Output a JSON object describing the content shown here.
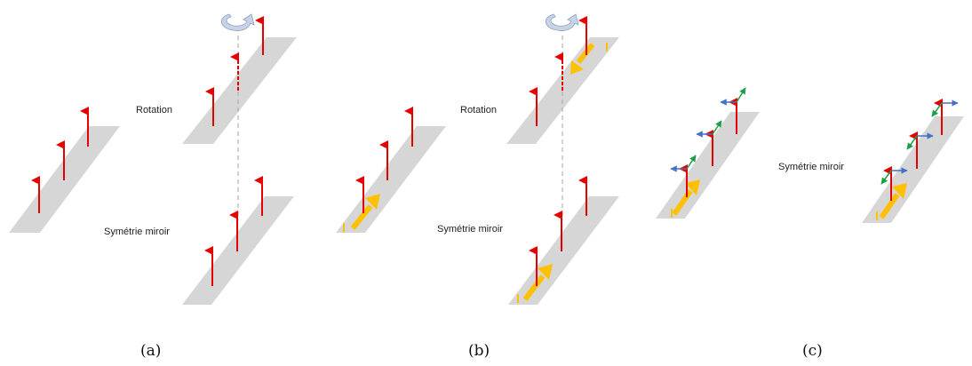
{
  "panels": [
    {
      "id": "a",
      "caption": "(a)",
      "labels": [
        "Rotation",
        "Symétrie miroir"
      ]
    },
    {
      "id": "b",
      "caption": "(b)",
      "labels": [
        "Rotation",
        "Symétrie miroir"
      ]
    },
    {
      "id": "c",
      "caption": "(c)",
      "labels": [
        "Symétrie miroir"
      ]
    }
  ],
  "colors": {
    "plane": "#d6d6d6",
    "spin": "#e60000",
    "current": "#ffc000",
    "axis": "#a6a6a6",
    "rotation_arrow": "#c8d4e6",
    "x_component": "#4472c4",
    "y_component": "#1e9e4a"
  },
  "icons": {
    "rotation": "curved-rotation-arrow-icon",
    "spin": "up-arrow-icon",
    "current": "thick-arrow-icon"
  }
}
